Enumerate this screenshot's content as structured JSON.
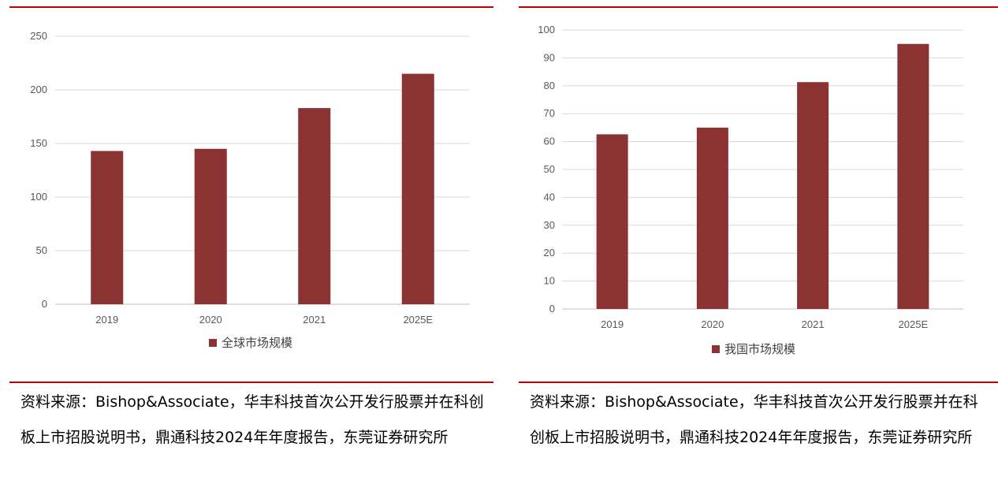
{
  "colors": {
    "bar": "#8b3232",
    "rule": "#c00000",
    "grid": "#d9d9d9",
    "axis": "#bfbfbf",
    "tick_text": "#595959"
  },
  "charts": {
    "global": {
      "source_text": "资料来源：Bishop&Associate，华丰科技首次公开发行股票并在科创板上市招股说明书，鼎通科技2024年年度报告，东莞证券研究所"
    },
    "china": {
      "source_text": "资料来源：Bishop&Associate，华丰科技首次公开发行股票并在科创板上市招股说明书，鼎通科技2024年年度报告，东莞证券研究所"
    }
  },
  "chart_data": [
    {
      "type": "bar",
      "title": "",
      "xlabel": "",
      "ylabel": "",
      "categories": [
        "2019",
        "2020",
        "2021",
        "2025E"
      ],
      "series": [
        {
          "name": "全球市场规模",
          "values": [
            143,
            145,
            183,
            215
          ]
        }
      ],
      "ylim": [
        0,
        250
      ],
      "yticks": [
        0,
        50,
        100,
        150,
        200,
        250
      ],
      "grid": true,
      "legend": "bottom"
    },
    {
      "type": "bar",
      "title": "",
      "xlabel": "",
      "ylabel": "",
      "categories": [
        "2019",
        "2020",
        "2021",
        "2025E"
      ],
      "series": [
        {
          "name": "我国市场规模",
          "values": [
            62.6,
            65,
            81.3,
            95
          ]
        }
      ],
      "ylim": [
        0,
        100
      ],
      "yticks": [
        0,
        10,
        20,
        30,
        40,
        50,
        60,
        70,
        80,
        90,
        100
      ],
      "grid": true,
      "legend": "bottom"
    }
  ]
}
